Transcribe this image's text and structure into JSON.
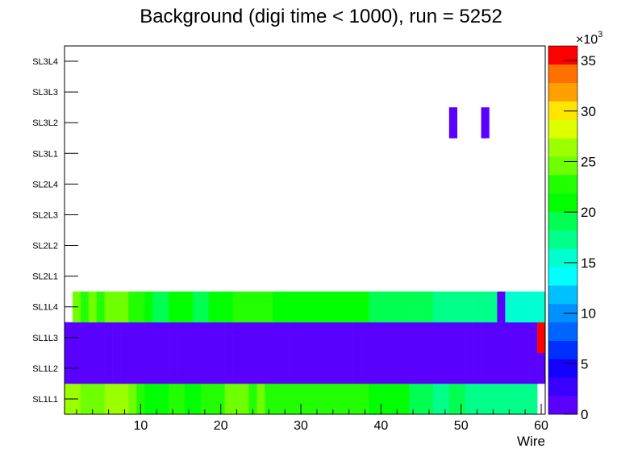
{
  "chart_data": {
    "type": "heatmap",
    "title": "Background (digi time < 1000), run = 5252",
    "xlabel": "Wire",
    "ylabel": "",
    "xlim": [
      0.5,
      60.5
    ],
    "x_ticks": [
      "10",
      "20",
      "30",
      "40",
      "50",
      "60"
    ],
    "x_tick_values": [
      10,
      20,
      30,
      40,
      50,
      60
    ],
    "z_label_multiplier": "×10",
    "z_label_exponent": "3",
    "zlim": [
      0,
      36440
    ],
    "z_ticks": [
      "0",
      "5",
      "10",
      "15",
      "20",
      "25",
      "30",
      "35"
    ],
    "z_tick_values": [
      0,
      5000,
      10000,
      15000,
      20000,
      25000,
      30000,
      35000
    ],
    "palette": [
      "#5a00ff",
      "#3a00ff",
      "#1400ff",
      "#0030ff",
      "#0064ff",
      "#0090ff",
      "#00c0ff",
      "#00ffff",
      "#00ffd0",
      "#00ff88",
      "#00ff50",
      "#00ff00",
      "#22ff00",
      "#6eff00",
      "#9cff00",
      "#ddff00",
      "#ffe600",
      "#ffa000",
      "#ff7000",
      "#ff0000"
    ],
    "rows": [
      {
        "label": "SL1L1",
        "values": [
          26400,
          26400,
          24600,
          24600,
          24600,
          26400,
          26400,
          26400,
          24600,
          22800,
          21000,
          21000,
          21000,
          22800,
          22800,
          21000,
          21000,
          22800,
          22800,
          22800,
          24600,
          24600,
          24600,
          22800,
          24600,
          22800,
          22800,
          22800,
          22800,
          22800,
          22800,
          22800,
          22800,
          22800,
          22800,
          22800,
          22800,
          22800,
          21000,
          21000,
          21000,
          21000,
          21000,
          19100,
          19100,
          19100,
          17300,
          17300,
          19100,
          19100,
          17300,
          17300,
          17300,
          17300,
          17300,
          17300,
          17300,
          17300,
          17300,
          0
        ]
      },
      {
        "label": "SL1L2",
        "values": [
          900,
          900,
          900,
          900,
          900,
          900,
          900,
          900,
          900,
          900,
          900,
          900,
          900,
          900,
          900,
          900,
          900,
          900,
          900,
          900,
          900,
          900,
          900,
          900,
          900,
          900,
          900,
          900,
          900,
          900,
          900,
          900,
          900,
          900,
          900,
          900,
          900,
          900,
          900,
          900,
          900,
          900,
          900,
          900,
          900,
          900,
          900,
          900,
          900,
          900,
          900,
          900,
          900,
          900,
          900,
          900,
          900,
          900,
          900,
          900
        ]
      },
      {
        "label": "SL1L3",
        "values": [
          900,
          900,
          900,
          900,
          900,
          900,
          900,
          900,
          900,
          900,
          900,
          900,
          900,
          900,
          900,
          900,
          900,
          900,
          900,
          900,
          900,
          900,
          900,
          900,
          900,
          900,
          900,
          900,
          900,
          900,
          900,
          900,
          900,
          900,
          900,
          900,
          900,
          900,
          900,
          900,
          900,
          900,
          900,
          900,
          900,
          900,
          900,
          900,
          900,
          900,
          900,
          900,
          900,
          900,
          900,
          900,
          900,
          900,
          900,
          35500
        ]
      },
      {
        "label": "SL1L4",
        "values": [
          0,
          24600,
          22800,
          24600,
          22800,
          24600,
          24600,
          24600,
          22800,
          22800,
          21000,
          19100,
          19100,
          21000,
          21000,
          21000,
          19100,
          19100,
          21000,
          21000,
          21000,
          22800,
          22800,
          22800,
          22800,
          22800,
          21000,
          21000,
          21000,
          21000,
          21000,
          21000,
          21000,
          21000,
          21000,
          21000,
          21000,
          21000,
          19100,
          19100,
          19100,
          19100,
          19100,
          19100,
          19100,
          19100,
          17300,
          17300,
          17300,
          17300,
          17300,
          17300,
          17300,
          17300,
          900,
          15500,
          15500,
          15500,
          15500,
          15500
        ]
      },
      {
        "label": "SL2L1",
        "values": []
      },
      {
        "label": "SL2L2",
        "values": []
      },
      {
        "label": "SL2L3",
        "values": []
      },
      {
        "label": "SL2L4",
        "values": []
      },
      {
        "label": "SL3L1",
        "values": []
      },
      {
        "label": "SL3L2",
        "values": [
          0,
          0,
          0,
          0,
          0,
          0,
          0,
          0,
          0,
          0,
          0,
          0,
          0,
          0,
          0,
          0,
          0,
          0,
          0,
          0,
          0,
          0,
          0,
          0,
          0,
          0,
          0,
          0,
          0,
          0,
          0,
          0,
          0,
          0,
          0,
          0,
          0,
          0,
          0,
          0,
          0,
          0,
          0,
          0,
          0,
          0,
          0,
          0,
          900,
          0,
          0,
          0,
          900,
          0,
          0,
          0,
          0,
          0,
          0,
          0
        ]
      },
      {
        "label": "SL3L3",
        "values": []
      },
      {
        "label": "SL3L4",
        "values": []
      }
    ]
  }
}
